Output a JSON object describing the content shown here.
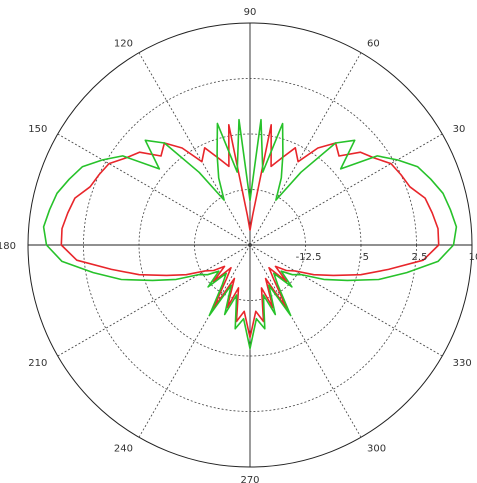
{
  "chart_data": {
    "type": "line",
    "subtype": "polar",
    "title": "",
    "angle_unit": "degrees",
    "angle_ticks": [
      {
        "angle": 0,
        "label": ""
      },
      {
        "angle": 30,
        "label": "30"
      },
      {
        "angle": 60,
        "label": "60"
      },
      {
        "angle": 90,
        "label": "90"
      },
      {
        "angle": 120,
        "label": "120"
      },
      {
        "angle": 150,
        "label": "150"
      },
      {
        "angle": 180,
        "label": "180"
      },
      {
        "angle": 210,
        "label": "210"
      },
      {
        "angle": 240,
        "label": "240"
      },
      {
        "angle": 270,
        "label": "270"
      },
      {
        "angle": 300,
        "label": "300"
      },
      {
        "angle": 330,
        "label": "330"
      }
    ],
    "radial_range": [
      -20,
      10
    ],
    "radial_ticks": [
      {
        "value": -12.5,
        "label": "-12.5"
      },
      {
        "value": -5,
        "label": "-5"
      },
      {
        "value": 2.5,
        "label": "2.5"
      },
      {
        "value": 10,
        "label": "10"
      }
    ],
    "grid": true,
    "series": [
      {
        "color": "#e8262b",
        "angles": [
          0,
          5,
          10,
          15,
          20,
          25,
          30,
          35,
          40,
          45,
          50,
          55,
          60,
          65,
          70,
          75,
          80,
          85,
          90,
          95,
          100,
          105,
          110,
          115,
          120,
          125,
          130,
          135,
          140,
          145,
          150,
          155,
          160,
          165,
          170,
          175,
          180,
          185,
          190,
          195,
          200,
          205,
          210,
          215,
          220,
          225,
          230,
          235,
          240,
          245,
          250,
          255,
          260,
          265,
          270,
          275,
          280,
          285,
          290,
          295,
          300,
          305,
          310,
          315,
          320,
          325,
          330,
          335,
          340,
          345,
          350,
          355
        ],
        "values": [
          5.5,
          5.5,
          5.0,
          4.5,
          3.0,
          2.5,
          2.0,
          0.5,
          -0.5,
          -3.0,
          -2.0,
          -4.0,
          -7.0,
          -5.5,
          -7.5,
          -9.0,
          -3.5,
          -16.0,
          -18.0,
          -16.0,
          -3.5,
          -9.0,
          -7.5,
          -5.5,
          -7.0,
          -4.0,
          -2.0,
          -3.0,
          -0.5,
          0.5,
          2.0,
          2.5,
          3.0,
          4.5,
          5.0,
          5.5,
          5.5,
          3.5,
          -1.0,
          -4.5,
          -8.0,
          -10.5,
          -13.0,
          -14.0,
          -15.5,
          -13.0,
          -16.0,
          -14.5,
          -10.0,
          -15.0,
          -11.0,
          -14.0,
          -9.5,
          -11.0,
          -7.5,
          -11.0,
          -9.5,
          -14.0,
          -11.0,
          -15.0,
          -10.0,
          -14.5,
          -16.0,
          -13.0,
          -15.5,
          -14.0,
          -13.0,
          -10.5,
          -8.0,
          -4.5,
          -1.0,
          3.5
        ]
      },
      {
        "color": "#27c22a",
        "angles": [
          0,
          5,
          10,
          15,
          20,
          25,
          30,
          35,
          40,
          45,
          50,
          55,
          60,
          65,
          70,
          75,
          80,
          85,
          90,
          95,
          100,
          105,
          110,
          115,
          120,
          125,
          130,
          135,
          140,
          145,
          150,
          155,
          160,
          165,
          170,
          175,
          180,
          185,
          190,
          195,
          200,
          205,
          210,
          215,
          220,
          225,
          230,
          235,
          240,
          245,
          250,
          255,
          260,
          265,
          270,
          275,
          280,
          285,
          290,
          295,
          300,
          305,
          310,
          315,
          320,
          325,
          330,
          335,
          340,
          345,
          350,
          355
        ],
        "values": [
          7.5,
          8.0,
          7.5,
          7.0,
          6.0,
          5.0,
          3.0,
          1.0,
          -4.0,
          0.0,
          -2.0,
          -8.0,
          -13.0,
          -10.0,
          -7.0,
          -3.0,
          -10.0,
          -3.0,
          -14.0,
          -3.0,
          -10.0,
          -3.0,
          -7.0,
          -10.0,
          -13.0,
          -8.0,
          -2.0,
          0.0,
          -4.0,
          1.0,
          3.0,
          5.0,
          6.0,
          7.0,
          7.5,
          8.0,
          7.5,
          5.5,
          1.5,
          -2.0,
          -6.0,
          -9.0,
          -12.0,
          -13.0,
          -14.5,
          -12.0,
          -15.0,
          -13.5,
          -9.0,
          -14.0,
          -10.0,
          -13.0,
          -8.5,
          -10.0,
          -6.0,
          -10.0,
          -8.5,
          -13.0,
          -10.0,
          -14.0,
          -9.0,
          -13.5,
          -15.0,
          -12.0,
          -14.5,
          -13.0,
          -12.0,
          -9.0,
          -6.0,
          -2.0,
          1.5,
          5.5
        ]
      }
    ]
  }
}
